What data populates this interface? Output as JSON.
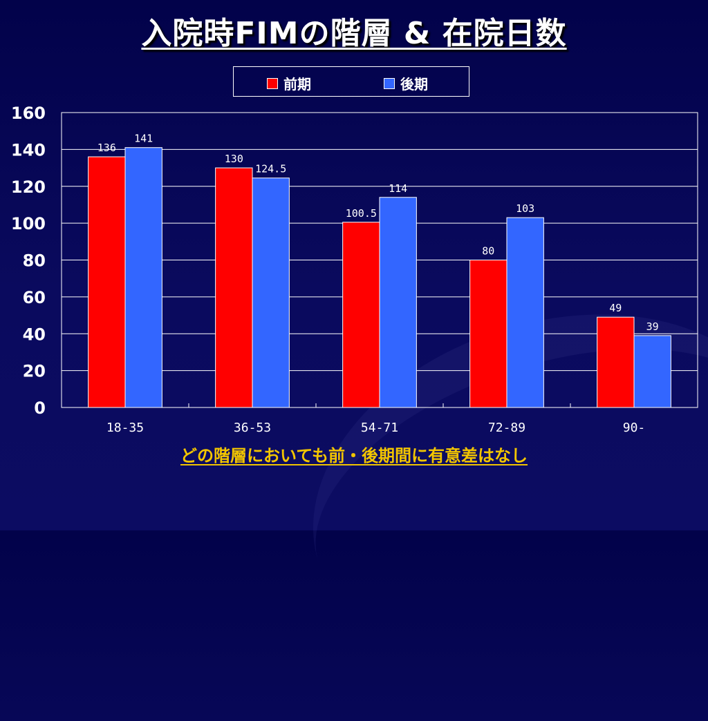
{
  "slide": {
    "title": "入院時FIMの階層 & 在院日数",
    "note": "どの階層においても前・後期間に有意差はなし"
  },
  "colors": {
    "series1": "#ff0000",
    "series2": "#3366ff",
    "text": "#ffffff",
    "note": "#f2c500"
  },
  "chart_data": {
    "type": "bar",
    "title": "入院時FIMの階層 & 在院日数",
    "categories": [
      "18-35",
      "36-53",
      "54-71",
      "72-89",
      "90-"
    ],
    "series": [
      {
        "name": "前期",
        "color": "#ff0000",
        "values": [
          136,
          130,
          100.5,
          80,
          49
        ],
        "labels": [
          "136",
          "130",
          "100.5",
          "80",
          "49"
        ]
      },
      {
        "name": "後期",
        "color": "#3366ff",
        "values": [
          141,
          124.5,
          114,
          103,
          39
        ],
        "labels": [
          "141",
          "124.5",
          "114",
          "103",
          "39"
        ]
      }
    ],
    "ylim": [
      0,
      160
    ],
    "yticks": [
      "0",
      "20",
      "40",
      "60",
      "80",
      "100",
      "120",
      "140",
      "160"
    ],
    "grid": true,
    "legend": "top"
  }
}
